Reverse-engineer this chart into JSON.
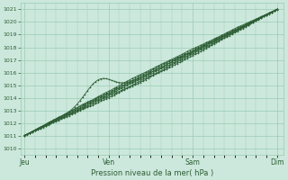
{
  "title": "Pression niveau de la mer( hPa )",
  "ylim": [
    1009.5,
    1021.5
  ],
  "yticks": [
    1010,
    1011,
    1012,
    1013,
    1014,
    1015,
    1016,
    1017,
    1018,
    1019,
    1020,
    1021
  ],
  "xtick_labels": [
    "Jeu",
    "Ven",
    "Sam",
    "Dim"
  ],
  "xtick_positions": [
    0,
    1,
    2,
    3
  ],
  "bg_color": "#cce8dc",
  "grid_color": "#99ccb3",
  "line_color": "#2d5e35",
  "n_points": 97,
  "line_width": 0.6,
  "marker_size": 1.2,
  "figsize": [
    3.2,
    2.0
  ],
  "dpi": 100
}
